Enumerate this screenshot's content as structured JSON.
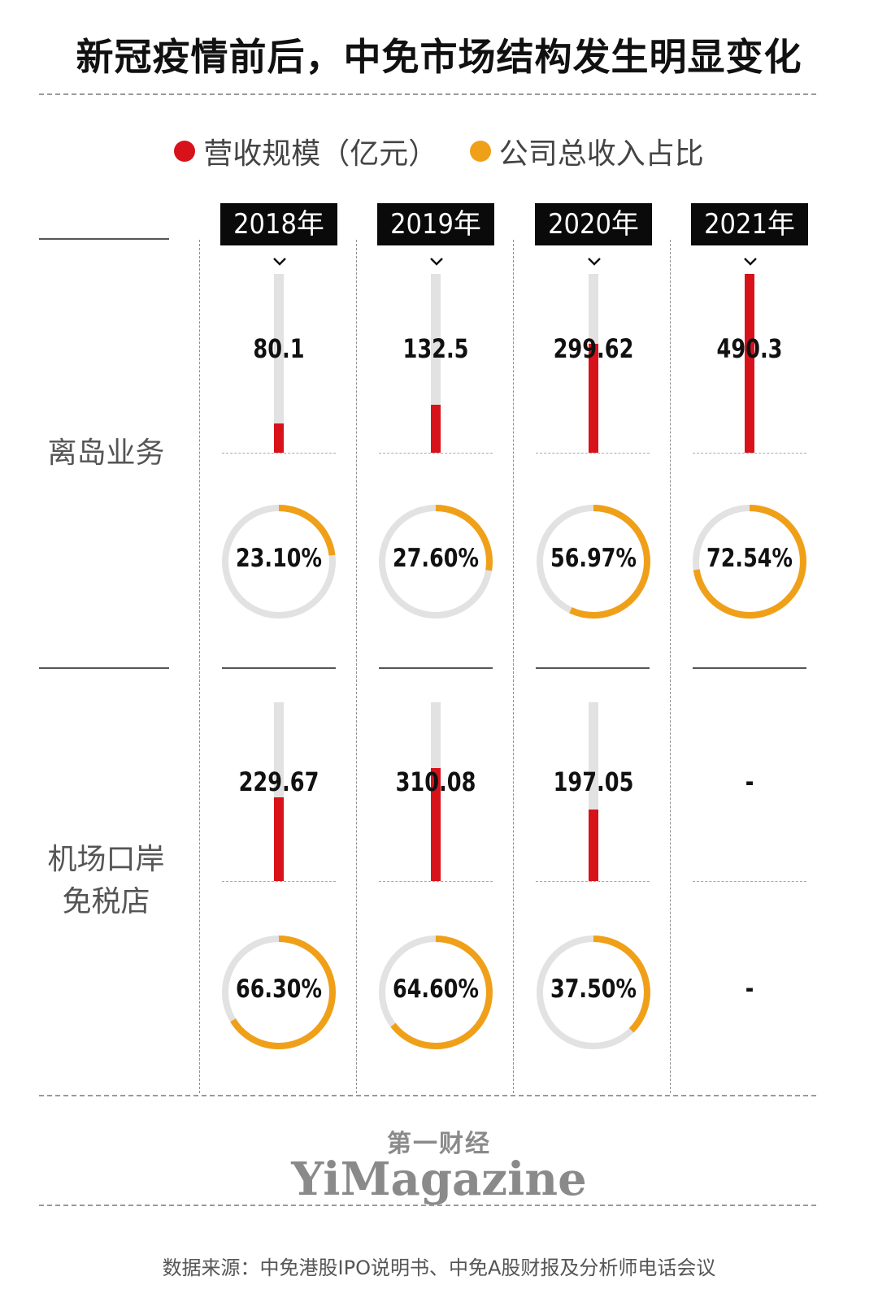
{
  "title": "新冠疫情前后，中免市场结构发生明显变化",
  "legend": [
    {
      "label": "营收规模（亿元）",
      "color": "#d8121a"
    },
    {
      "label": "公司总收入占比",
      "color": "#f0a018"
    }
  ],
  "colors": {
    "bar": "#d8121a",
    "ring": "#f0a018",
    "track": "#e2e2e2"
  },
  "years": [
    "2018年",
    "2019年",
    "2020年",
    "2021年"
  ],
  "rows": [
    {
      "label_lines": [
        "离岛业务"
      ]
    },
    {
      "label_lines": [
        "机场口岸",
        "免税店"
      ]
    }
  ],
  "chart_data": {
    "type": "bar",
    "title": "新冠疫情前后，中免市场结构发生明显变化",
    "categories": [
      "2018年",
      "2019年",
      "2020年",
      "2021年"
    ],
    "series": [
      {
        "name": "离岛业务 营收规模（亿元）",
        "values": [
          80.1,
          132.5,
          299.62,
          490.3
        ],
        "labels": [
          "80.1",
          "132.5",
          "299.62",
          "490.3"
        ]
      },
      {
        "name": "离岛业务 公司总收入占比",
        "values": [
          23.1,
          27.6,
          56.97,
          72.54
        ],
        "labels": [
          "23.10%",
          "27.60%",
          "56.97%",
          "72.54%"
        ]
      },
      {
        "name": "机场口岸免税店 营收规模（亿元）",
        "values": [
          229.67,
          310.08,
          197.05,
          null
        ],
        "labels": [
          "229.67",
          "310.08",
          "197.05",
          "-"
        ]
      },
      {
        "name": "机场口岸免税店 公司总收入占比",
        "values": [
          66.3,
          64.6,
          37.5,
          null
        ],
        "labels": [
          "66.30%",
          "64.60%",
          "37.50%",
          "-"
        ]
      }
    ],
    "ylim": [
      0,
      490.3
    ],
    "ring_scale": [
      0,
      100
    ]
  },
  "logo": {
    "cn": "第一财经",
    "en": "YiMagazine"
  },
  "source": "数据来源：中免港股IPO说明书、中免A股财报及分析师电话会议"
}
